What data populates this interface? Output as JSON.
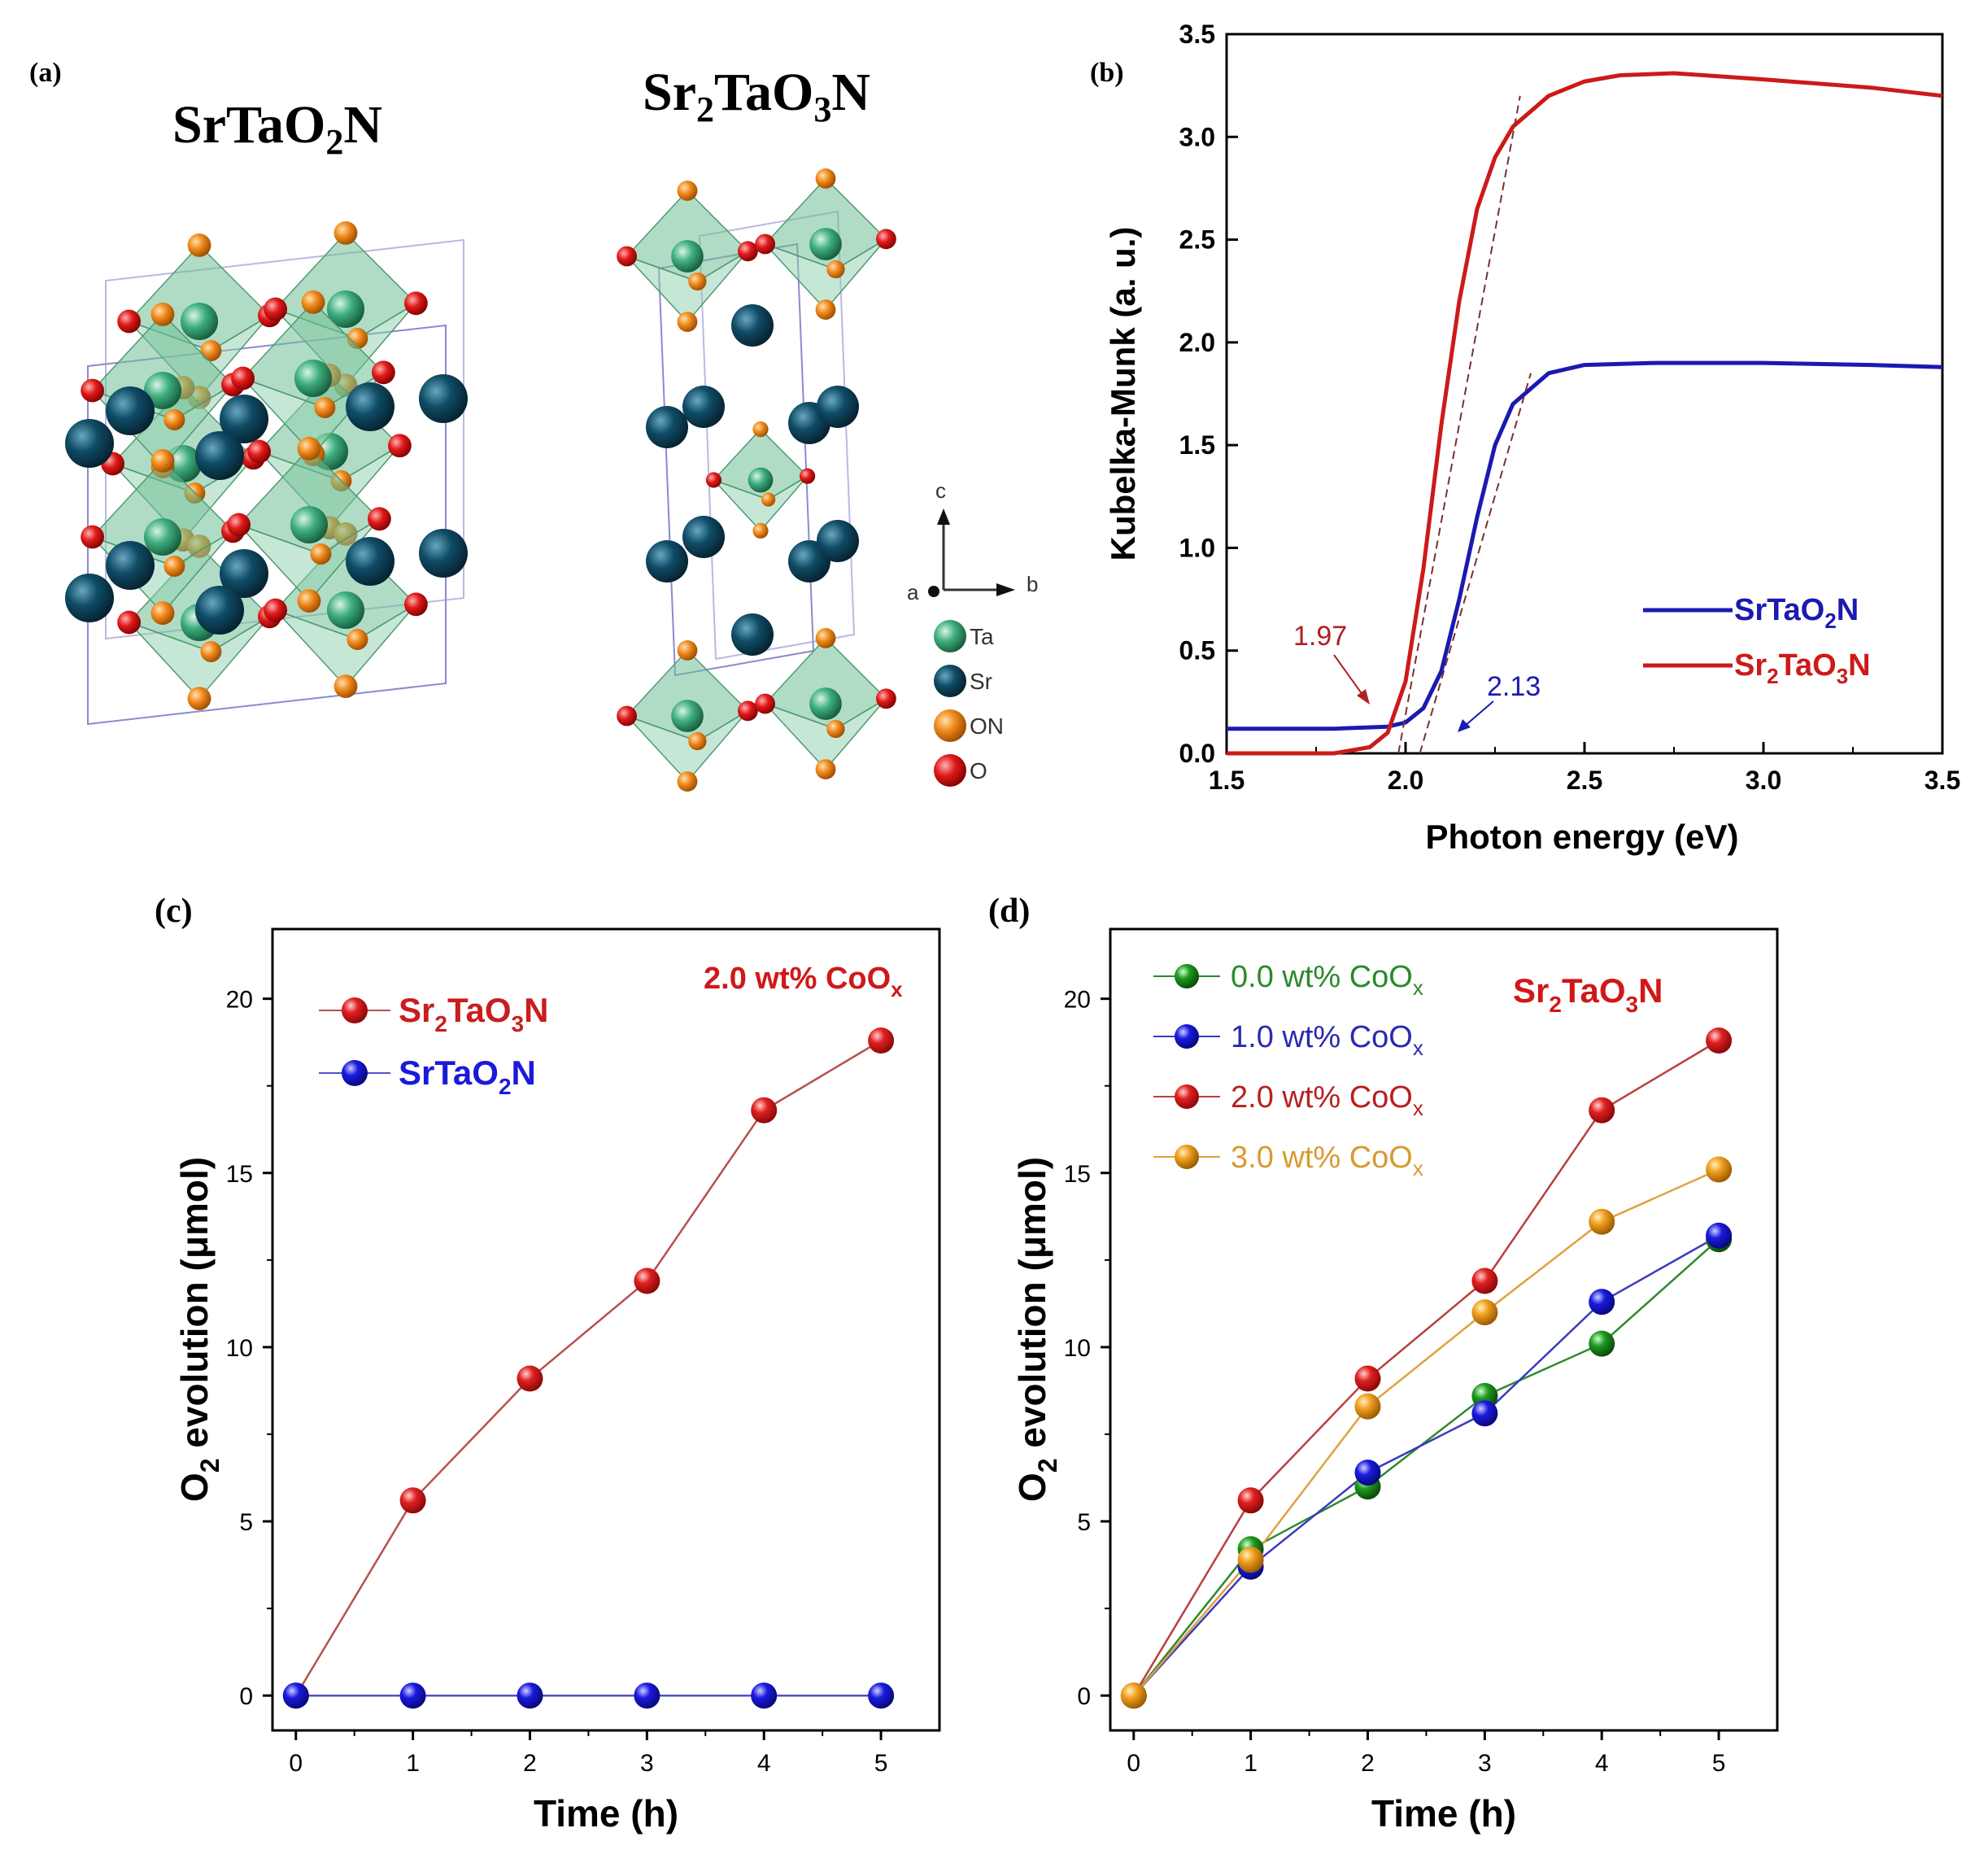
{
  "chart_data": [
    {
      "panel": "(a)",
      "type": "other",
      "structures": [
        {
          "formula": "SrTaO",
          "sub1": "2",
          "tail": "N"
        },
        {
          "formula": "Sr",
          "sub0": "2",
          "mid": "TaO",
          "sub1": "3",
          "tail": "N"
        }
      ],
      "axes_labels": {
        "c": "c",
        "a": "a",
        "b": "b"
      },
      "legend": [
        {
          "label": "Ta",
          "color": "#3fae7e"
        },
        {
          "label": "Sr",
          "color": "#0f4c66"
        },
        {
          "label": "ON",
          "color": "#f08a1c"
        },
        {
          "label": "O",
          "color": "#e01a1a"
        }
      ]
    },
    {
      "panel": "(b)",
      "type": "line",
      "xlabel": "Photon energy (eV)",
      "ylabel": "Kubelka-Munk (a. u.)",
      "xlim": [
        1.5,
        3.5
      ],
      "ylim": [
        0.0,
        3.5
      ],
      "xticks": [
        "1.5",
        "2.0",
        "2.5",
        "3.0",
        "3.5"
      ],
      "yticks": [
        "0.0",
        "0.5",
        "1.0",
        "1.5",
        "2.0",
        "2.5",
        "3.0",
        "3.5"
      ],
      "series": [
        {
          "name": "SrTaO2N",
          "label_base": "SrTaO",
          "label_sub": "2",
          "label_tail": "N",
          "color": "#1a1ab0",
          "x": [
            1.5,
            1.8,
            1.95,
            2.0,
            2.05,
            2.1,
            2.15,
            2.2,
            2.25,
            2.3,
            2.4,
            2.5,
            2.7,
            3.0,
            3.3,
            3.5
          ],
          "y": [
            0.12,
            0.12,
            0.13,
            0.15,
            0.22,
            0.4,
            0.75,
            1.15,
            1.5,
            1.7,
            1.85,
            1.89,
            1.9,
            1.9,
            1.89,
            1.88
          ]
        },
        {
          "name": "Sr2TaO3N",
          "label_base": "Sr",
          "label_sub0": "2",
          "label_mid": "TaO",
          "label_sub": "3",
          "label_tail": "N",
          "color": "#cc1a1a",
          "x": [
            1.5,
            1.8,
            1.9,
            1.95,
            2.0,
            2.05,
            2.1,
            2.15,
            2.2,
            2.25,
            2.3,
            2.4,
            2.5,
            2.6,
            2.75,
            3.0,
            3.3,
            3.5
          ],
          "y": [
            0.0,
            0.0,
            0.03,
            0.1,
            0.35,
            0.9,
            1.6,
            2.2,
            2.65,
            2.9,
            3.05,
            3.2,
            3.27,
            3.3,
            3.31,
            3.28,
            3.24,
            3.2
          ]
        }
      ],
      "tangents": [
        {
          "x": [
            2.04,
            2.35
          ],
          "y": [
            0.0,
            1.85
          ],
          "color": "#7a3030"
        },
        {
          "x": [
            1.98,
            2.32
          ],
          "y": [
            0.0,
            3.2
          ],
          "color": "#7a3030"
        }
      ],
      "annotations": [
        {
          "text": "1.97",
          "color": "#b02020"
        },
        {
          "text": "2.13",
          "color": "#1a1ab0"
        }
      ]
    },
    {
      "panel": "(c)",
      "type": "line",
      "xlabel": "Time (h)",
      "ylabel_sub": "2",
      "ylabel_pre": "O",
      "ylabel_post": " evolution (μmol)",
      "xlim": [
        -0.2,
        5.5
      ],
      "ylim": [
        -1,
        22
      ],
      "xticks": [
        "0",
        "1",
        "2",
        "3",
        "4",
        "5"
      ],
      "yticks": [
        "0",
        "5",
        "10",
        "15",
        "20"
      ],
      "note": {
        "base": "2.0 wt% CoO",
        "sub": "x",
        "color": "#d01818"
      },
      "categories": [
        0,
        1,
        2,
        3,
        4,
        5
      ],
      "series": [
        {
          "name": "Sr2TaO3N",
          "label_base": "Sr",
          "label_sub0": "2",
          "label_mid": "TaO",
          "label_sub": "3",
          "label_tail": "N",
          "color": "#c81e1e",
          "line": "#b85050",
          "values": [
            0,
            5.6,
            9.1,
            11.9,
            16.8,
            18.8
          ]
        },
        {
          "name": "SrTaO2N",
          "label_base": "SrTaO",
          "label_sub": "2",
          "label_tail": "N",
          "color": "#1a1ad8",
          "line": "#5050c8",
          "values": [
            0,
            0,
            0,
            0,
            0,
            0
          ]
        }
      ]
    },
    {
      "panel": "(d)",
      "type": "line",
      "xlabel": "Time (h)",
      "ylabel_sub": "2",
      "ylabel_pre": "O",
      "ylabel_post": " evolution (μmol)",
      "xlim": [
        -0.2,
        5.5
      ],
      "ylim": [
        -1,
        22
      ],
      "xticks": [
        "0",
        "1",
        "2",
        "3",
        "4",
        "5"
      ],
      "yticks": [
        "0",
        "5",
        "10",
        "15",
        "20"
      ],
      "note": {
        "base": "Sr",
        "sub0": "2",
        "mid": "TaO",
        "sub": "3",
        "tail": "N",
        "color": "#d01818"
      },
      "categories": [
        0,
        1,
        2,
        3,
        4,
        5
      ],
      "series": [
        {
          "name": "0.0 wt% CoOx",
          "label_base": "0.0 wt% CoO",
          "label_sub": "x",
          "color": "#1e9a1e",
          "line": "#2e8a2e",
          "values": [
            0,
            4.2,
            6.0,
            8.6,
            10.1,
            13.1
          ]
        },
        {
          "name": "1.0 wt% CoOx",
          "label_base": "1.0 wt% CoO",
          "label_sub": "x",
          "color": "#1a1ad8",
          "line": "#3a3ac0",
          "values": [
            0,
            3.7,
            6.4,
            8.1,
            11.3,
            13.2
          ]
        },
        {
          "name": "2.0 wt% CoOx",
          "label_base": "2.0 wt% CoO",
          "label_sub": "x",
          "color": "#c81e1e",
          "line": "#b84040",
          "values": [
            0,
            5.6,
            9.1,
            11.9,
            16.8,
            18.8
          ]
        },
        {
          "name": "3.0 wt% CoOx",
          "label_base": "3.0 wt% CoO",
          "label_sub": "x",
          "color": "#f0a020",
          "line": "#e0a040",
          "values": [
            0,
            3.9,
            8.3,
            11.0,
            13.6,
            15.1
          ]
        }
      ]
    }
  ]
}
